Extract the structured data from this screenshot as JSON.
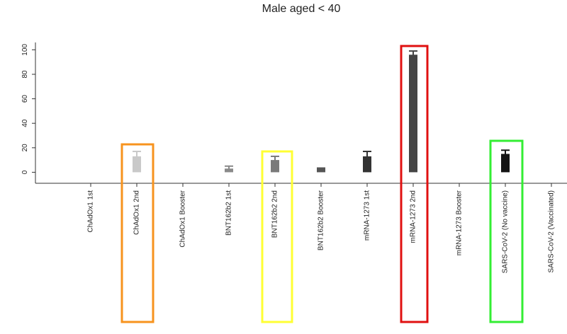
{
  "chart_data": {
    "type": "bar",
    "title": "Male aged < 40",
    "categories": [
      "ChAdOx1 1st",
      "ChAdOx1 2nd",
      "ChAdOx1 Booster",
      "BNT162b2 1st",
      "BNT162b2 2nd",
      "BNT162b2 Booster",
      "mRNA-1273 1st",
      "mRNA-1273 2nd",
      "mRNA-1273 Booster",
      "SARS-CoV-2 (No vaccine)",
      "SARS-CoV-2 (Vaccinated)"
    ],
    "values": [
      null,
      13,
      null,
      3,
      10,
      4,
      13,
      96,
      null,
      15,
      null
    ],
    "errors": [
      null,
      4,
      null,
      2,
      3,
      null,
      4,
      3,
      null,
      3,
      null
    ],
    "colors": [
      null,
      "#c9c9c9",
      null,
      "#8a8a8a",
      "#7a7a7a",
      null,
      "#333333",
      "#454545",
      null,
      "#141414",
      null
    ],
    "ylim": [
      -9,
      106
    ],
    "yticks": [
      0,
      20,
      40,
      60,
      80,
      100
    ]
  }
}
